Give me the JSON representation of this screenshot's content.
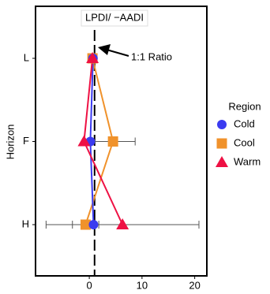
{
  "chart_data": {
    "type": "line",
    "orientation": "horizontal",
    "title": "LPDI/ −AADI",
    "y_label": "Horizon",
    "categories": [
      "L",
      "F",
      "H"
    ],
    "xlim": [
      -10.2,
      22.3
    ],
    "xticks": [
      0,
      10,
      20
    ],
    "reference_x": 1,
    "annotation": "1:1 Ratio",
    "legend_title": "Region",
    "legend_position": "right",
    "series": [
      {
        "name": "Cold",
        "color": "#3b3bf0",
        "marker": "circle",
        "values": [
          0.7,
          0.2,
          0.8
        ],
        "errors": [
          null,
          null,
          null
        ]
      },
      {
        "name": "Cool",
        "color": "#f0922b",
        "marker": "square",
        "values": [
          0.6,
          4.5,
          -0.7
        ],
        "errors": [
          null,
          4.2,
          2.5
        ]
      },
      {
        "name": "Warm",
        "color": "#ee1144",
        "marker": "triangle",
        "values": [
          0.6,
          -1.0,
          6.3
        ],
        "errors": [
          null,
          null,
          14.5
        ]
      }
    ]
  }
}
